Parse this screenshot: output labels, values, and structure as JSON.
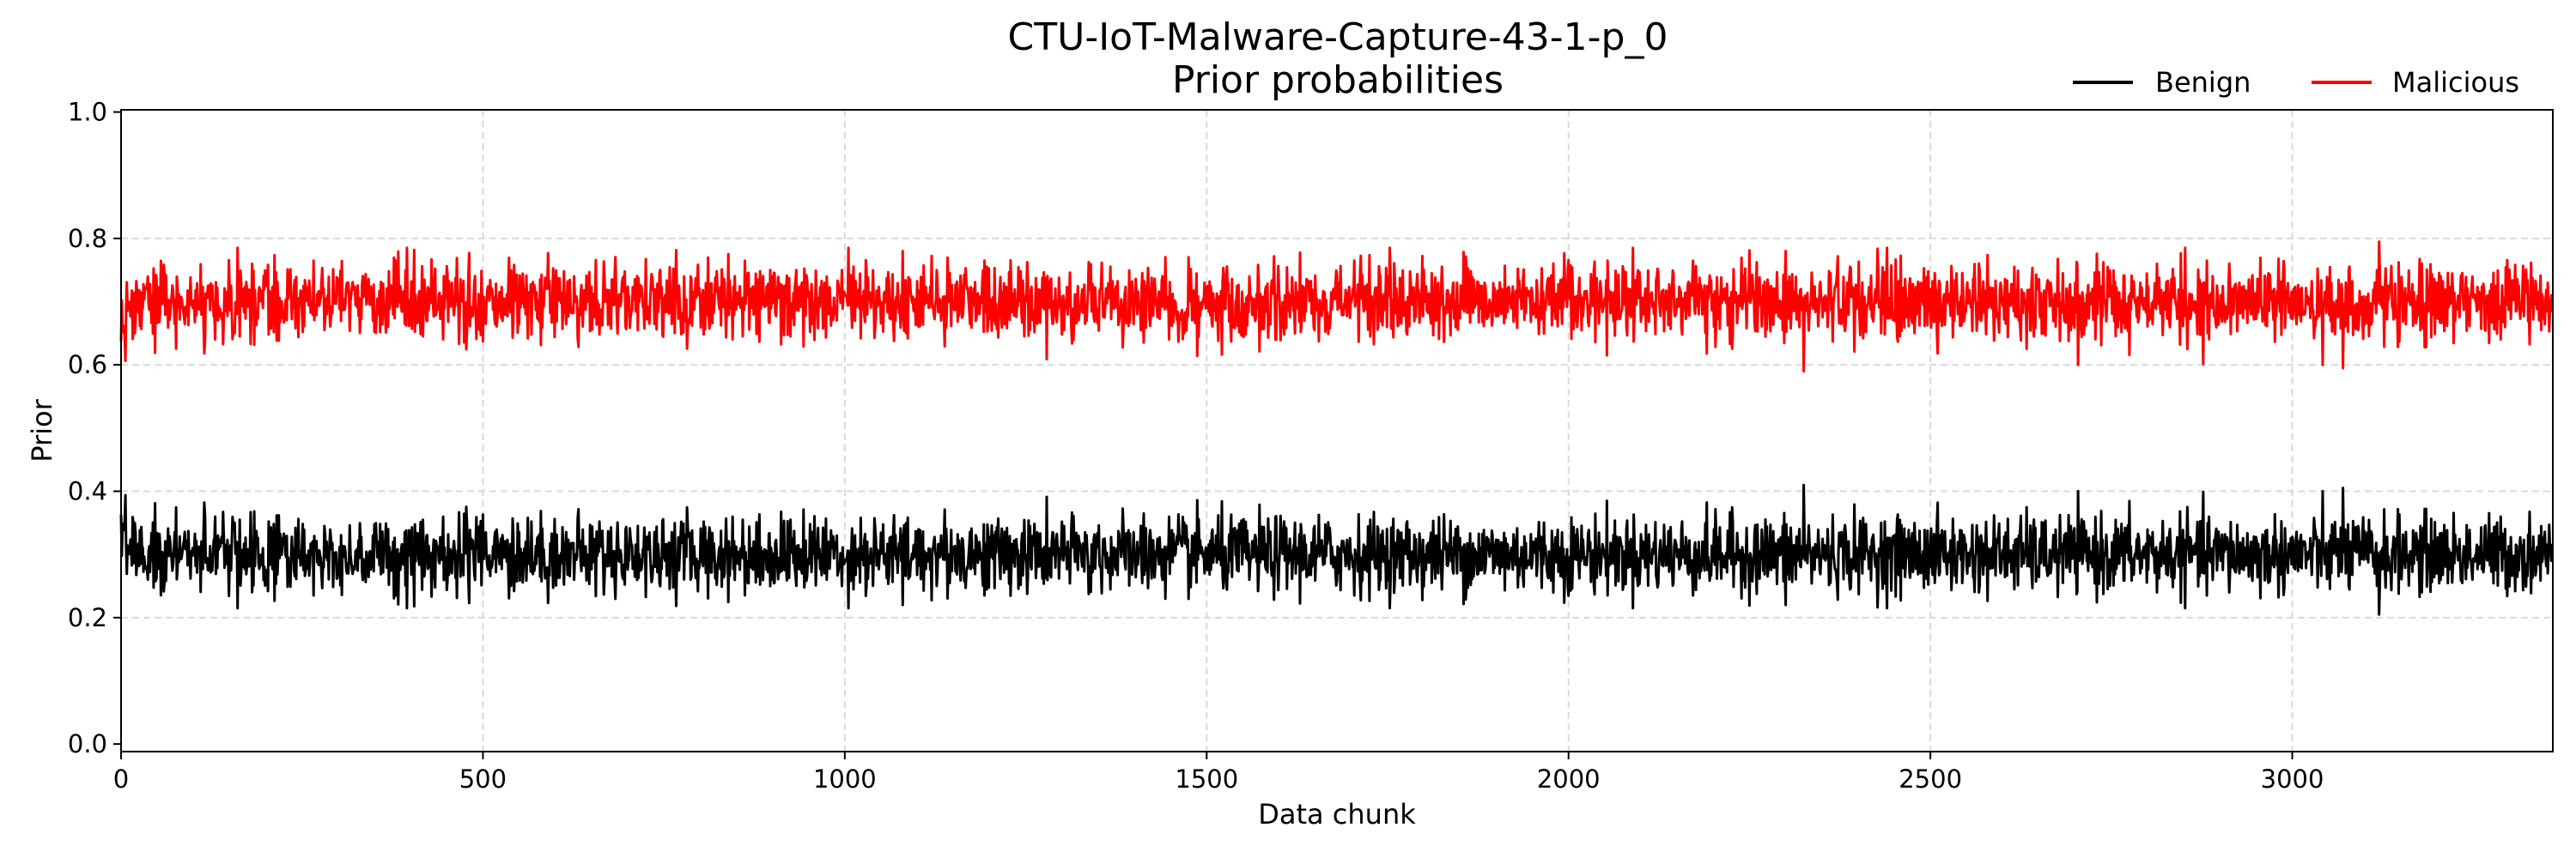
{
  "chart_data": {
    "type": "line",
    "title": "CTU-IoT-Malware-Capture-43-1-p_0",
    "subtitle": "Prior probabilities",
    "xlabel": "Data chunk",
    "ylabel": "Prior",
    "xlim": [
      0,
      3360
    ],
    "ylim": [
      0.0,
      1.0
    ],
    "xticks": [
      "0",
      "500",
      "1000",
      "1500",
      "2000",
      "2500",
      "3000"
    ],
    "yticks": [
      "0.0",
      "0.2",
      "0.4",
      "0.6",
      "0.8",
      "1.0"
    ],
    "grid": true,
    "legend_position": "top-right, outside plot area",
    "n_points": 3360,
    "series": [
      {
        "name": "Benign",
        "color": "#000000",
        "mean": 0.3,
        "min": 0.205,
        "max": 0.41,
        "noise_sd": 0.03,
        "spikes": [
          {
            "x": 395,
            "y": 0.215
          },
          {
            "x": 1080,
            "y": 0.22
          },
          {
            "x": 2300,
            "y": 0.22
          },
          {
            "x": 2325,
            "y": 0.41
          },
          {
            "x": 3070,
            "y": 0.405
          },
          {
            "x": 3120,
            "y": 0.205
          }
        ]
      },
      {
        "name": "Malicious",
        "color": "#ff0000",
        "mean": 0.7,
        "min": 0.59,
        "max": 0.795,
        "noise_sd": 0.03,
        "spikes": [
          {
            "x": 395,
            "y": 0.785
          },
          {
            "x": 1080,
            "y": 0.78
          },
          {
            "x": 2300,
            "y": 0.78
          },
          {
            "x": 2325,
            "y": 0.59
          },
          {
            "x": 3070,
            "y": 0.595
          },
          {
            "x": 3120,
            "y": 0.795
          }
        ]
      }
    ]
  }
}
